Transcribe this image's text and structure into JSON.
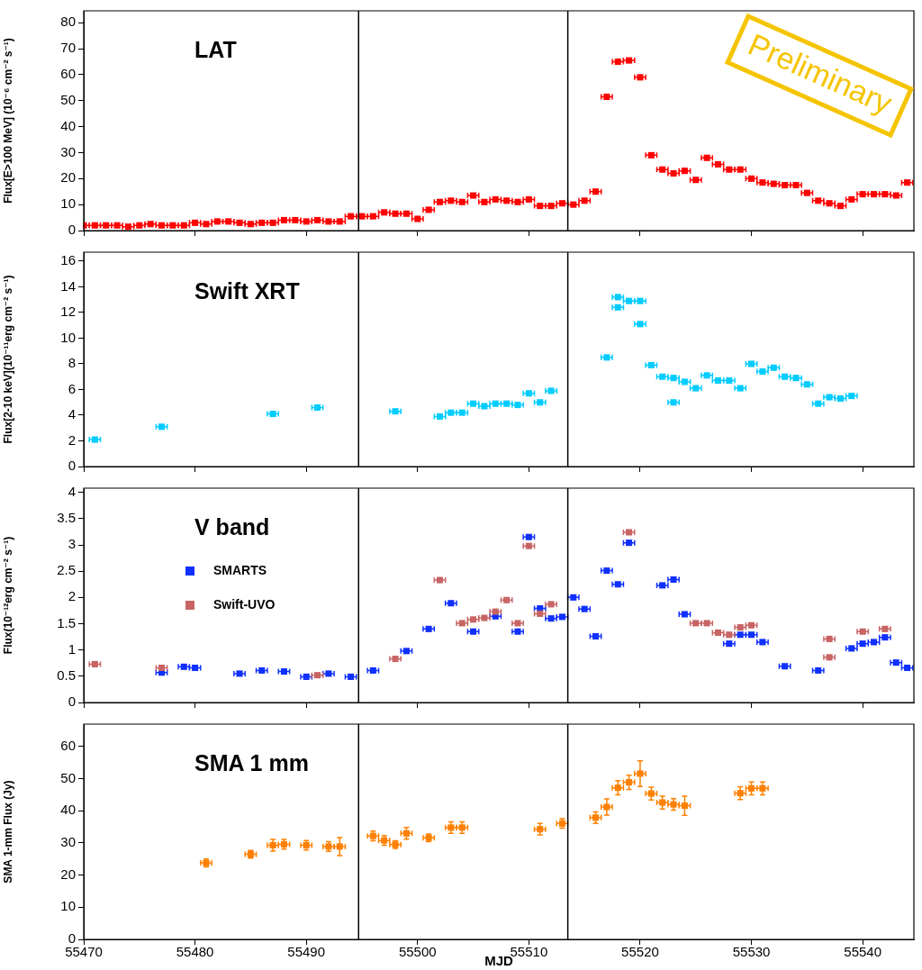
{
  "chart_data": [
    {
      "type": "scatter",
      "title": "LAT",
      "ylabel": "Flux[E>100 MeV] (10⁻⁶ cm⁻² s⁻¹)",
      "xlim": [
        55470,
        55544.6
      ],
      "xticks": [
        55470,
        55480,
        55490,
        55500,
        55510,
        55520,
        55530,
        55540
      ],
      "ylim": [
        0,
        84.6
      ],
      "yticks": [
        0,
        10,
        20,
        30,
        40,
        50,
        60,
        70,
        80
      ],
      "tick_labels": "y",
      "marker": "square",
      "annotations": [
        "Preliminary"
      ],
      "ref_lines": [
        {
          "axis": "x",
          "value": 55494.7,
          "color": "#000000"
        },
        {
          "axis": "x",
          "value": 55513.5,
          "color": "#000000"
        }
      ],
      "series": [
        {
          "color": "#ff0000",
          "x": [
            55470,
            55471,
            55472,
            55473,
            55474,
            55475,
            55476,
            55477,
            55478,
            55479,
            55480,
            55481,
            55482,
            55483,
            55484,
            55485,
            55486,
            55487,
            55488,
            55489,
            55490,
            55491,
            55492,
            55493,
            55494,
            55495,
            55496,
            55497,
            55498,
            55499,
            55500,
            55501,
            55502,
            55503,
            55504,
            55505,
            55506,
            55507,
            55508,
            55509,
            55510,
            55511,
            55512,
            55513,
            55514,
            55515,
            55516,
            55517,
            55518,
            55519,
            55520,
            55521,
            55522,
            55523,
            55524,
            55525,
            55526,
            55527,
            55528,
            55529,
            55530,
            55531,
            55532,
            55533,
            55534,
            55535,
            55536,
            55537,
            55538,
            55539,
            55540,
            55541,
            55542,
            55543,
            55544
          ],
          "values": [
            2,
            2,
            2,
            2,
            1.5,
            2,
            2.5,
            2,
            2,
            2,
            3,
            2.5,
            3.5,
            3.5,
            3,
            2.5,
            3,
            3,
            4,
            4,
            3.5,
            4,
            3.5,
            3.5,
            5.5,
            5.5,
            5.5,
            7,
            6.5,
            6.5,
            4.5,
            8,
            11,
            11.5,
            11,
            13.5,
            11,
            12,
            11.5,
            11,
            12,
            9.5,
            9.5,
            10.5,
            10,
            11.5,
            15,
            51.5,
            65,
            65.5,
            59,
            29,
            23.5,
            22,
            23,
            19.5,
            28,
            25.5,
            23.5,
            23.5,
            20,
            18.5,
            18,
            17.5,
            17.5,
            14.5,
            11.5,
            10.5,
            9.5,
            12,
            14,
            14,
            14,
            13.5,
            18.5
          ],
          "xerrors": [
            [
              55470,
              55470.5
            ],
            0.5,
            0.5,
            0.5,
            0.5,
            0.5,
            0.5,
            0.5,
            0.5,
            0.5,
            0.5,
            0.5,
            0.5,
            0.5,
            0.5,
            0.5,
            0.5,
            0.5,
            0.5,
            0.5,
            0.5,
            0.5,
            0.5,
            0.5,
            0.5,
            0.5,
            0.5,
            0.5,
            0.5,
            0.5,
            0.5,
            0.5,
            0.5,
            0.5,
            0.5,
            0.5,
            0.5,
            0.5,
            0.5,
            0.5,
            0.5,
            0.5,
            0.5,
            0.5,
            0.5,
            0.5,
            0.5,
            0.5,
            0.5,
            0.5,
            0.5,
            0.5,
            0.5,
            0.5,
            0.5,
            0.5,
            0.5,
            0.5,
            0.5,
            0.5,
            0.5,
            0.5,
            0.5,
            0.5,
            0.5,
            0.5,
            0.5,
            0.5,
            0.5,
            0.5,
            0.5,
            0.5,
            0.5,
            0.5,
            0.5
          ]
        }
      ]
    },
    {
      "type": "scatter",
      "title": "Swift XRT",
      "ylabel": "Flux[2-10 keV](10⁻¹¹erg cm⁻² s⁻¹)",
      "xlim": [
        55470,
        55544.6
      ],
      "xticks": [
        55470,
        55480,
        55490,
        55500,
        55510,
        55520,
        55530,
        55540
      ],
      "ylim": [
        0,
        16.7
      ],
      "yticks": [
        0,
        2,
        4,
        6,
        8,
        10,
        12,
        14,
        16
      ],
      "tick_labels": "y",
      "marker": "square",
      "ref_lines": [
        {
          "axis": "x",
          "value": 55494.7,
          "color": "#000000"
        },
        {
          "axis": "x",
          "value": 55513.5,
          "color": "#000000"
        }
      ],
      "series": [
        {
          "color": "#00ccff",
          "x": [
            55471,
            55477,
            55487,
            55491,
            55498,
            55502,
            55503,
            55504,
            55505,
            55506,
            55507,
            55508,
            55509,
            55510,
            55511,
            55512,
            55517,
            55518,
            55518,
            55519,
            55520,
            55520,
            55521,
            55522,
            55523,
            55523,
            55524,
            55525,
            55526,
            55527,
            55528,
            55529,
            55530,
            55531,
            55532,
            55533,
            55534,
            55535,
            55536,
            55537,
            55538,
            55539
          ],
          "values": [
            2.1,
            3.1,
            4.1,
            4.6,
            4.3,
            3.9,
            4.2,
            4.2,
            4.9,
            4.7,
            4.9,
            4.9,
            4.8,
            5.7,
            5.0,
            5.9,
            8.5,
            13.2,
            12.4,
            12.9,
            12.9,
            11.1,
            7.9,
            7.0,
            6.9,
            5.0,
            6.6,
            6.1,
            7.1,
            6.7,
            6.7,
            6.1,
            8.0,
            7.4,
            7.7,
            7.0,
            6.9,
            6.4,
            4.9,
            5.4,
            5.3,
            5.5
          ],
          "xerrors": [
            0.5,
            0.5,
            0.5,
            0.5,
            0.5,
            0.5,
            0.5,
            0.5,
            0.5,
            0.5,
            0.5,
            0.5,
            0.5,
            0.5,
            0.5,
            0.5,
            0.5,
            0.5,
            0.5,
            0.5,
            0.5,
            0.5,
            0.5,
            0.5,
            0.5,
            0.5,
            0.5,
            0.5,
            0.5,
            0.5,
            0.5,
            0.5,
            0.5,
            0.5,
            0.5,
            0.5,
            0.5,
            0.5,
            0.5,
            0.5,
            0.5,
            0.5
          ]
        }
      ]
    },
    {
      "type": "scatter",
      "title": "V band",
      "ylabel": "Flux(10⁻¹²erg cm⁻² s⁻¹)",
      "xlim": [
        55470,
        55544.6
      ],
      "xticks": [
        55470,
        55480,
        55490,
        55500,
        55510,
        55520,
        55530,
        55540
      ],
      "ylim": [
        0,
        4.08
      ],
      "yticks": [
        0,
        0.5,
        1,
        1.5,
        2,
        2.5,
        3,
        3.5,
        4
      ],
      "tick_labels": "y",
      "marker": "square",
      "legend": "top left",
      "ref_lines": [
        {
          "axis": "x",
          "value": 55494.7,
          "color": "#000000"
        },
        {
          "axis": "x",
          "value": 55513.5,
          "color": "#000000"
        }
      ],
      "series": [
        {
          "name": "SMARTS",
          "color": "#1030ff",
          "x": [
            55477,
            55479,
            55480,
            55484,
            55486,
            55488,
            55490,
            55492,
            55494,
            55496,
            55499,
            55501,
            55503,
            55505,
            55507,
            55509,
            55510,
            55511,
            55512,
            55513,
            55514,
            55515,
            55516,
            55517,
            55518,
            55519,
            55522,
            55523,
            55524,
            55528,
            55529,
            55530,
            55531,
            55533,
            55536,
            55539,
            55540,
            55541,
            55542,
            55543,
            55544
          ],
          "values": [
            0.57,
            0.68,
            0.66,
            0.55,
            0.61,
            0.59,
            0.49,
            0.55,
            0.49,
            0.61,
            0.98,
            1.4,
            1.89,
            1.35,
            1.64,
            1.35,
            3.15,
            1.79,
            1.6,
            1.63,
            2.0,
            1.78,
            1.26,
            2.51,
            2.25,
            3.04,
            2.23,
            2.34,
            1.68,
            1.12,
            1.29,
            1.29,
            1.15,
            0.69,
            0.61,
            1.03,
            1.12,
            1.15,
            1.24,
            0.76,
            0.66
          ],
          "xerrors": [
            0.5,
            0.5,
            0.5,
            0.5,
            0.5,
            0.5,
            0.5,
            0.5,
            0.5,
            0.5,
            0.5,
            0.5,
            0.5,
            0.5,
            0.5,
            0.5,
            0.5,
            0.5,
            0.5,
            0.5,
            0.5,
            0.5,
            0.5,
            0.5,
            0.5,
            0.5,
            0.5,
            0.5,
            0.5,
            0.5,
            0.5,
            0.5,
            0.5,
            0.5,
            0.5,
            0.5,
            0.5,
            0.5,
            0.5,
            0.5,
            0.5
          ]
        },
        {
          "name": "Swift-UVO",
          "color": "#c86464",
          "x": [
            55471,
            55477,
            55491,
            55498,
            55502,
            55504,
            55505,
            55506,
            55507,
            55508,
            55509,
            55510,
            55511,
            55512,
            55519,
            55525,
            55526,
            55527,
            55528,
            55529,
            55530,
            55537,
            55537,
            55540,
            55542
          ],
          "values": [
            0.73,
            0.66,
            0.52,
            0.83,
            2.33,
            1.51,
            1.58,
            1.61,
            1.73,
            1.95,
            1.51,
            2.98,
            1.69,
            1.87,
            3.24,
            1.51,
            1.51,
            1.33,
            1.29,
            1.43,
            1.47,
            1.21,
            0.86,
            1.35,
            1.4
          ],
          "xerrors": [
            0.5,
            0.5,
            0.5,
            0.5,
            0.5,
            0.5,
            0.5,
            0.5,
            0.5,
            0.5,
            0.5,
            0.5,
            0.5,
            0.5,
            0.5,
            0.5,
            0.5,
            0.5,
            0.5,
            0.5,
            0.5,
            0.5,
            0.5,
            0.5,
            0.5
          ]
        }
      ]
    },
    {
      "type": "scatter",
      "title": "SMA 1 mm",
      "ylabel": "SMA 1-mm Flux (Jy)",
      "xlabel": "MJD",
      "xlim": [
        55470,
        55544.6
      ],
      "xticks": [
        55470,
        55480,
        55490,
        55500,
        55510,
        55520,
        55530,
        55540
      ],
      "ylim": [
        0,
        67
      ],
      "yticks": [
        0,
        10,
        20,
        30,
        40,
        50,
        60
      ],
      "marker": "square",
      "ref_lines": [
        {
          "axis": "x",
          "value": 55494.7,
          "color": "#000000"
        },
        {
          "axis": "x",
          "value": 55513.5,
          "color": "#000000"
        }
      ],
      "series": [
        {
          "color": "#ff8000",
          "x": [
            55481,
            55485,
            55487,
            55488,
            55490,
            55492,
            55493,
            55496,
            55497,
            55498,
            55499,
            55501,
            55503,
            55504,
            55511,
            55513,
            55516,
            55517,
            55518,
            55519,
            55520,
            55521,
            55522,
            55523,
            55524,
            55529,
            55530,
            55531
          ],
          "values": [
            23.8,
            26.5,
            29.3,
            29.6,
            29.3,
            28.9,
            28.9,
            32.2,
            30.8,
            29.5,
            33,
            31.6,
            34.8,
            34.8,
            34.3,
            36.1,
            37.9,
            41.2,
            47.2,
            48.9,
            51.6,
            45.4,
            42.6,
            42,
            41.6,
            45.5,
            47,
            47
          ],
          "errors": [
            1.2,
            1.2,
            1.8,
            1.5,
            1.5,
            1.5,
            2.8,
            1.5,
            1.5,
            1.2,
            1.8,
            1.2,
            1.8,
            1.8,
            1.8,
            1.5,
            1.8,
            2.5,
            2.2,
            2.2,
            4,
            2,
            2,
            1.8,
            3,
            2,
            2,
            2
          ],
          "xerrors": [
            0.5,
            0.5,
            0.5,
            0.5,
            0.5,
            0.5,
            0.5,
            0.5,
            0.5,
            0.5,
            0.5,
            0.5,
            0.5,
            0.5,
            0.5,
            0.5,
            0.5,
            0.5,
            0.5,
            0.5,
            0.5,
            0.5,
            0.5,
            0.5,
            0.5,
            0.5,
            0.5,
            0.5
          ]
        }
      ]
    }
  ]
}
